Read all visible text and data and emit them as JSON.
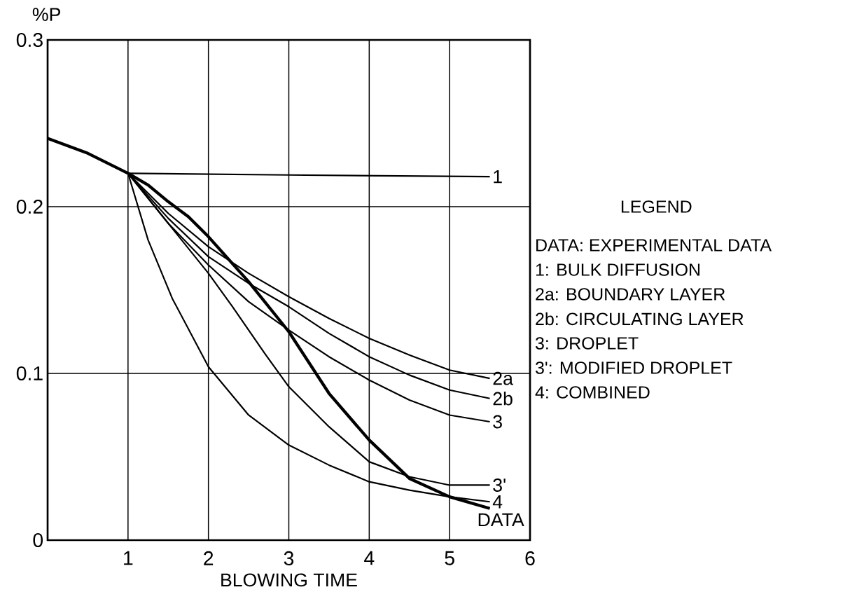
{
  "chart_data": {
    "type": "line",
    "xlabel": "BLOWING TIME",
    "ylabel": "%P",
    "xlim": [
      0,
      6
    ],
    "ylim": [
      0,
      0.3
    ],
    "xticks": [
      {
        "value": 0,
        "label": null
      },
      1,
      2,
      3,
      4,
      5,
      6
    ],
    "yticks": [
      0,
      0.1,
      0.2,
      0.3
    ],
    "grid": true,
    "marker": "none",
    "line_style": "solid",
    "legend_title": "LEGEND",
    "annotations": [
      "DATA: EXPERIMENTAL DATA",
      "1: BULK DIFFUSION",
      "2a: BOUNDARY LAYER",
      "2b: CIRCULATING LAYER",
      "3: DROPLET",
      "3': MODIFIED DROPLET",
      "4: COMBINED"
    ],
    "series": [
      {
        "name": "DATA",
        "color": "#000000",
        "x": [
          0,
          0.5,
          1,
          1.25,
          1.5,
          1.75,
          2,
          2.5,
          3,
          3.5,
          4,
          4.5,
          5,
          5.5
        ],
        "values": [
          0.241,
          0.232,
          0.22,
          0.213,
          0.203,
          0.194,
          0.182,
          0.155,
          0.125,
          0.088,
          0.06,
          0.037,
          0.026,
          0.019
        ]
      },
      {
        "name": "1",
        "color": "#000000",
        "x": [
          1,
          3,
          5.5
        ],
        "values": [
          0.22,
          0.219,
          0.218
        ]
      },
      {
        "name": "2a",
        "color": "#000000",
        "x": [
          1,
          1.5,
          2,
          2.5,
          3,
          3.5,
          4,
          4.5,
          5,
          5.5
        ],
        "values": [
          0.22,
          0.196,
          0.176,
          0.16,
          0.146,
          0.133,
          0.121,
          0.111,
          0.102,
          0.097
        ]
      },
      {
        "name": "2b",
        "color": "#000000",
        "x": [
          1,
          1.5,
          2,
          2.5,
          3,
          3.5,
          4,
          4.5,
          5,
          5.5
        ],
        "values": [
          0.22,
          0.193,
          0.17,
          0.154,
          0.14,
          0.124,
          0.11,
          0.099,
          0.09,
          0.085
        ]
      },
      {
        "name": "3",
        "color": "#000000",
        "x": [
          1,
          1.5,
          2,
          2.5,
          3,
          3.5,
          4,
          4.5,
          5,
          5.5
        ],
        "values": [
          0.22,
          0.19,
          0.165,
          0.143,
          0.126,
          0.11,
          0.096,
          0.084,
          0.075,
          0.071
        ]
      },
      {
        "name": "3'",
        "color": "#000000",
        "x": [
          1,
          1.5,
          2,
          2.3,
          2.7,
          3,
          3.5,
          4,
          4.5,
          5,
          5.5
        ],
        "values": [
          0.22,
          0.19,
          0.16,
          0.14,
          0.112,
          0.092,
          0.068,
          0.047,
          0.038,
          0.033,
          0.033
        ]
      },
      {
        "name": "4",
        "color": "#000000",
        "x": [
          1,
          1.25,
          1.55,
          2,
          2.5,
          3,
          3.5,
          4,
          4.5,
          5,
          5.5
        ],
        "values": [
          0.22,
          0.18,
          0.145,
          0.104,
          0.075,
          0.057,
          0.045,
          0.035,
          0.03,
          0.026,
          0.023
        ]
      }
    ]
  }
}
